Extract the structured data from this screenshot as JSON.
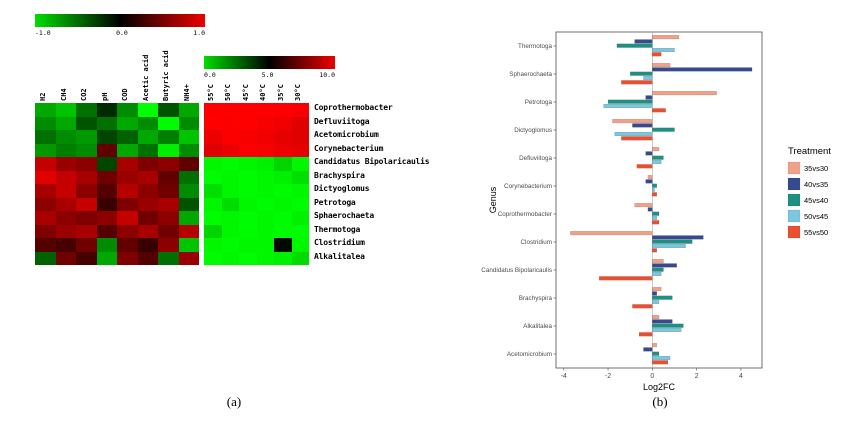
{
  "figure": {
    "panel_a_label": "(a)",
    "panel_b_label": "(b)"
  },
  "chart_data": [
    {
      "type": "heatmap",
      "panel": "a",
      "rows": [
        "Coprothermobacter",
        "Defluviitoga",
        "Acetomicrobium",
        "Corynebacterium",
        "Candidatus Bipolaricaulis",
        "Brachyspira",
        "Dictyoglomus",
        "Petrotoga",
        "Sphaerochaeta",
        "Thermotoga",
        "Clostridium",
        "Alkalitalea"
      ],
      "left_block": {
        "columns": [
          "H2",
          "CH4",
          "CO2",
          "pH",
          "COD",
          "Acetic acid",
          "Butyric acid",
          "NH4+"
        ],
        "scale": {
          "min": -1,
          "max": 1,
          "labels": [
            "-1.0",
            "0.0",
            "1.0"
          ]
        },
        "values": [
          [
            -0.6,
            -0.7,
            -0.4,
            -0.15,
            -0.5,
            -0.95,
            -0.3,
            -0.6
          ],
          [
            -0.5,
            -0.6,
            -0.3,
            -0.4,
            -0.6,
            -0.5,
            -0.9,
            -0.5
          ],
          [
            -0.4,
            -0.5,
            -0.55,
            -0.25,
            -0.35,
            -0.6,
            -0.45,
            -0.7
          ],
          [
            -0.55,
            -0.45,
            -0.5,
            0.35,
            -0.6,
            -0.4,
            -0.85,
            -0.5
          ],
          [
            0.7,
            0.55,
            0.5,
            -0.25,
            0.6,
            0.45,
            0.5,
            0.35
          ],
          [
            0.8,
            0.7,
            0.6,
            0.4,
            0.55,
            0.6,
            0.35,
            -0.4
          ],
          [
            0.6,
            0.7,
            0.5,
            0.3,
            0.65,
            0.5,
            0.4,
            -0.5
          ],
          [
            0.5,
            0.6,
            0.7,
            0.2,
            0.45,
            0.55,
            0.6,
            -0.3
          ],
          [
            0.6,
            0.5,
            0.45,
            0.5,
            0.7,
            0.4,
            0.5,
            -0.6
          ],
          [
            0.45,
            0.55,
            0.6,
            0.3,
            0.5,
            0.6,
            0.4,
            0.65
          ],
          [
            0.3,
            0.25,
            0.4,
            -0.5,
            0.35,
            0.2,
            0.5,
            -0.7
          ],
          [
            -0.35,
            0.4,
            0.25,
            -0.6,
            0.45,
            0.3,
            -0.4,
            0.55
          ]
        ]
      },
      "right_block": {
        "columns": [
          "55°C",
          "50°C",
          "45°C",
          "40°C",
          "35°C",
          "30°C"
        ],
        "scale": {
          "min": 0,
          "max": 10,
          "labels": [
            "0.0",
            "5.0",
            "10.0"
          ]
        },
        "values": [
          [
            9.5,
            9.8,
            9.6,
            9.7,
            9.5,
            9.4
          ],
          [
            9.6,
            9.5,
            9.7,
            9.4,
            9.3,
            9.0
          ],
          [
            9.2,
            9.5,
            9.4,
            9.3,
            9.1,
            9.0
          ],
          [
            9.0,
            9.2,
            9.5,
            9.4,
            9.2,
            9.1
          ],
          [
            0.6,
            0.5,
            0.6,
            0.7,
            1.2,
            0.6
          ],
          [
            0.5,
            0.6,
            0.5,
            0.6,
            0.7,
            1.0
          ],
          [
            1.0,
            0.6,
            0.5,
            0.6,
            0.5,
            0.6
          ],
          [
            0.6,
            1.1,
            0.6,
            0.5,
            0.6,
            0.5
          ],
          [
            0.5,
            0.6,
            0.5,
            0.6,
            0.5,
            0.7
          ],
          [
            1.2,
            0.6,
            0.5,
            0.6,
            0.5,
            0.5
          ],
          [
            0.6,
            0.5,
            0.6,
            0.6,
            4.8,
            0.6
          ],
          [
            0.5,
            0.6,
            0.5,
            0.6,
            0.7,
            1.1
          ]
        ]
      },
      "colormap": {
        "low": "#00dd00",
        "mid": "#000000",
        "high": "#ee0000"
      }
    },
    {
      "type": "bar",
      "panel": "b",
      "orientation": "horizontal",
      "xlabel": "Log2FC",
      "ylabel": "Genus",
      "xlim": [
        -4.35,
        4.95
      ],
      "x_ticks": [
        -4,
        -2,
        0,
        2,
        4
      ],
      "legend_title": "Treatment",
      "legend_position": "right",
      "categories": [
        "Thermotoga",
        "Sphaerochaeta",
        "Petrotoga",
        "Dictyoglomus",
        "Defluviitoga",
        "Corynebacterium",
        "Coprothermobacter",
        "Clostridium",
        "Candidatus Bipolaricaulis",
        "Brachyspira",
        "Alkalitalea",
        "Acetomicrobium"
      ],
      "series": [
        {
          "name": "35vs30",
          "color": "#F2A189",
          "values": [
            1.2,
            0.8,
            2.9,
            -1.8,
            0.3,
            -0.2,
            -0.8,
            -3.7,
            0.5,
            0.4,
            0.3,
            0.2
          ]
        },
        {
          "name": "40vs35",
          "color": "#364B8F",
          "values": [
            -0.8,
            4.5,
            -0.3,
            -0.9,
            -0.3,
            -0.3,
            -0.2,
            2.3,
            1.1,
            0.2,
            0.9,
            -0.4
          ]
        },
        {
          "name": "45vs40",
          "color": "#208F83",
          "values": [
            -1.6,
            -1.0,
            -2.0,
            1.0,
            0.5,
            0.2,
            0.3,
            1.8,
            0.5,
            0.9,
            1.4,
            0.3
          ]
        },
        {
          "name": "50vs45",
          "color": "#7CC6DE",
          "values": [
            1.0,
            -0.4,
            -2.2,
            -1.7,
            0.4,
            0.1,
            0.2,
            1.5,
            0.4,
            0.3,
            1.3,
            0.8
          ]
        },
        {
          "name": "55vs50",
          "color": "#E85030",
          "values": [
            0.4,
            -1.4,
            0.6,
            -1.4,
            -0.7,
            0.2,
            0.3,
            0.2,
            -2.4,
            -0.9,
            -0.6,
            0.7
          ]
        }
      ]
    }
  ]
}
